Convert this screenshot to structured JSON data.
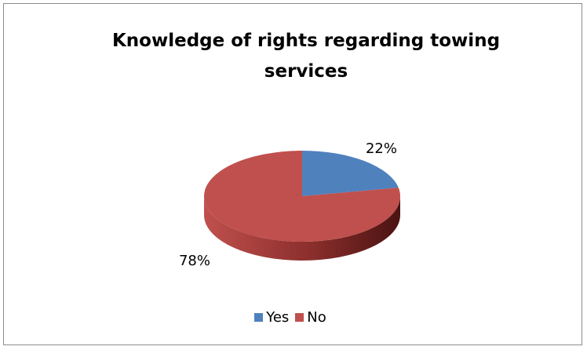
{
  "chart_data": {
    "type": "pie",
    "title": "Knowledge of rights regarding towing services",
    "categories": [
      "Yes",
      "No"
    ],
    "values": [
      22,
      78
    ],
    "value_labels": [
      "22%",
      "78%"
    ],
    "colors": [
      "#4f81bd",
      "#c0504d"
    ],
    "legend_position": "bottom",
    "style": "3d"
  }
}
